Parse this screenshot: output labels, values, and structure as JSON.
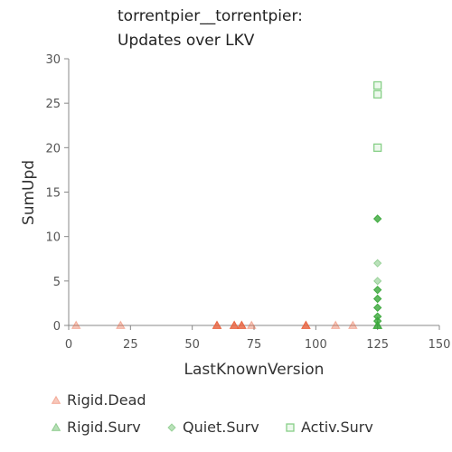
{
  "chart_data": {
    "type": "scatter",
    "title_lines": [
      "torrentpier__torrentpier:",
      "Updates over LKV"
    ],
    "xlabel": "LastKnownVersion",
    "ylabel": "SumUpd",
    "xlim": [
      0,
      150
    ],
    "ylim": [
      0,
      30
    ],
    "xticks": [
      0,
      25,
      50,
      75,
      100,
      125,
      150
    ],
    "yticks": [
      0,
      5,
      10,
      15,
      20,
      25,
      30
    ],
    "grid": false,
    "legend_position": "bottom",
    "series": [
      {
        "name": "Rigid.Dead",
        "marker": "triangle",
        "color": "#e8603c",
        "points": [
          {
            "x": 3,
            "y": 0,
            "light": true
          },
          {
            "x": 21,
            "y": 0,
            "light": true
          },
          {
            "x": 60,
            "y": 0,
            "light": false
          },
          {
            "x": 67,
            "y": 0,
            "light": false
          },
          {
            "x": 70,
            "y": 0,
            "light": false
          },
          {
            "x": 74,
            "y": 0,
            "light": true
          },
          {
            "x": 96,
            "y": 0,
            "light": false
          },
          {
            "x": 108,
            "y": 0,
            "light": true
          },
          {
            "x": 115,
            "y": 0,
            "light": true
          }
        ]
      },
      {
        "name": "Rigid.Surv",
        "marker": "triangle",
        "color": "#2ea12e",
        "points": [
          {
            "x": 125,
            "y": 0,
            "light": false
          }
        ]
      },
      {
        "name": "Quiet.Surv",
        "marker": "diamond",
        "color": "#3aa83a",
        "points": [
          {
            "x": 125,
            "y": 0.5,
            "light": false
          },
          {
            "x": 125,
            "y": 1,
            "light": false
          },
          {
            "x": 125,
            "y": 2,
            "light": false
          },
          {
            "x": 125,
            "y": 3,
            "light": false
          },
          {
            "x": 125,
            "y": 4,
            "light": false
          },
          {
            "x": 125,
            "y": 5,
            "light": true
          },
          {
            "x": 125,
            "y": 7,
            "light": true
          },
          {
            "x": 125,
            "y": 12,
            "light": false
          }
        ]
      },
      {
        "name": "Activ.Surv",
        "marker": "square",
        "color": "#6cc46c",
        "points": [
          {
            "x": 125,
            "y": 20,
            "light": true
          },
          {
            "x": 125,
            "y": 26,
            "light": true
          },
          {
            "x": 125,
            "y": 27,
            "light": true
          }
        ]
      }
    ],
    "legend_rows": [
      [
        "Rigid.Dead"
      ],
      [
        "Rigid.Surv",
        "Quiet.Surv",
        "Activ.Surv"
      ]
    ]
  },
  "colors": {
    "axis": "#888888",
    "text": "#333333"
  }
}
